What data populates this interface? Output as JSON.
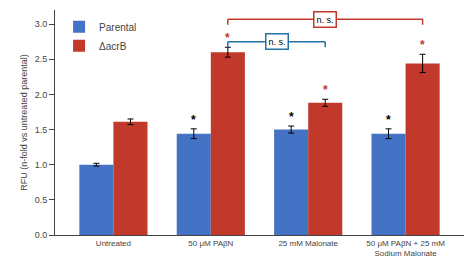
{
  "chart_data": {
    "type": "bar",
    "categories": [
      "Untreated",
      "50 μM PAβN",
      "25 mM Malonate",
      "50 μM PAβN + 25 mM\nSodium Malonate"
    ],
    "series": [
      {
        "name": "Parental",
        "color": "#4472C4",
        "values": [
          1.0,
          1.44,
          1.5,
          1.44
        ],
        "errors": [
          0.02,
          0.07,
          0.05,
          0.07
        ]
      },
      {
        "name": "ΔacrB",
        "color": "#C0392B",
        "values": [
          1.61,
          2.6,
          1.88,
          2.44
        ],
        "errors": [
          0.04,
          0.07,
          0.05,
          0.13
        ]
      }
    ],
    "ylabel": "RFU (n-fold vs untreated parental)",
    "ylim": [
      0,
      3.2
    ],
    "yticks": [
      {
        "value": 0.0,
        "label": "0.0"
      },
      0.5,
      {
        "value": 1.0,
        "label": "1.0"
      },
      1.5,
      {
        "value": 2.0,
        "label": "2.0"
      },
      2.5,
      {
        "value": 3.0,
        "label": "3.0"
      }
    ],
    "grid": false,
    "legend": "upper left",
    "annotations": [
      {
        "text": "*",
        "category": "50 μM PAβN",
        "series": "Parental",
        "color": "#000000"
      },
      {
        "text": "*",
        "category": "25 mM Malonate",
        "series": "Parental",
        "color": "#000000"
      },
      {
        "text": "*",
        "category": "50 μM PAβN + 25 mM\nSodium Malonate",
        "series": "Parental",
        "color": "#000000"
      },
      {
        "text": "*",
        "category": "50 μM PAβN",
        "series": "ΔacrB",
        "color": "#C0392B"
      },
      {
        "text": "*",
        "category": "25 mM Malonate",
        "series": "ΔacrB",
        "color": "#C0392B"
      },
      {
        "text": "*",
        "category": "50 μM PAβN + 25 mM\nSodium Malonate",
        "series": "ΔacrB",
        "color": "#C0392B"
      },
      {
        "text": "n. s.",
        "from": "50 μM PAβN",
        "to": "25 mM Malonate",
        "series": "ΔacrB",
        "color": "#2471A3"
      },
      {
        "text": "n. s.",
        "from": "50 μM PAβN",
        "to": "50 μM PAβN + 25 mM\nSodium Malonate",
        "series": "ΔacrB",
        "color": "#C0392B"
      }
    ]
  }
}
